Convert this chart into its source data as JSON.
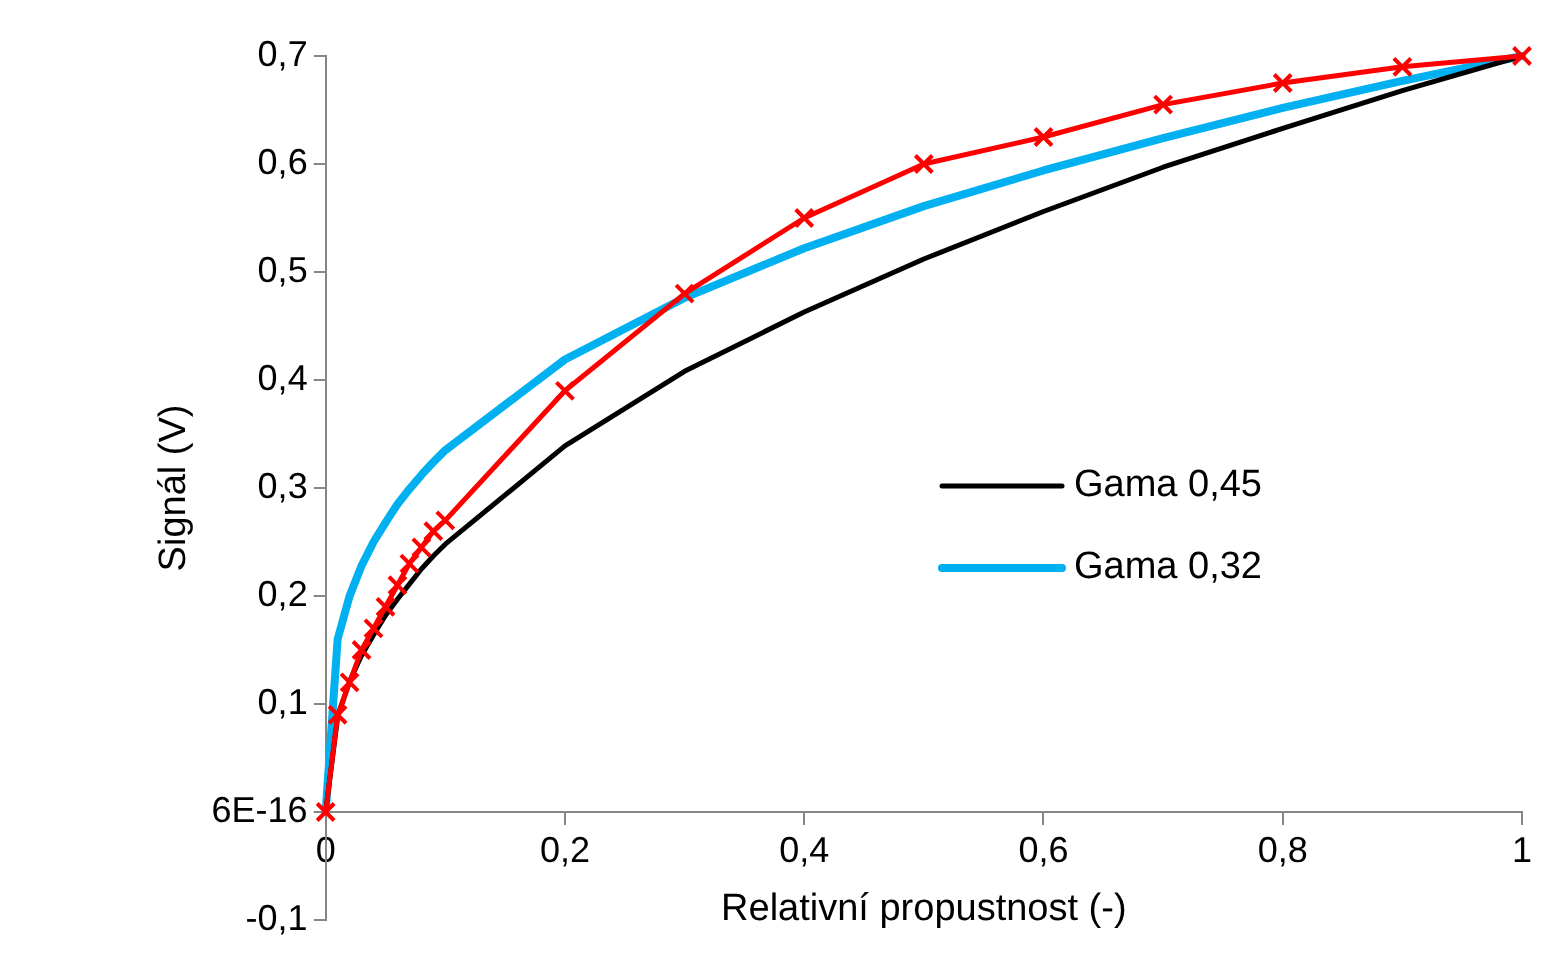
{
  "chart_data": {
    "type": "line",
    "xlabel": "Relativní propustnost (-)",
    "ylabel": "Signál (V)",
    "xlim": [
      0,
      1
    ],
    "xticks": [
      0,
      {
        "value": 0.2,
        "label": "0,2"
      },
      {
        "value": 0.4,
        "label": "0,4"
      },
      {
        "value": 0.6,
        "label": "0,6"
      },
      {
        "value": 0.8,
        "label": "0,8"
      },
      1
    ],
    "ylim": [
      -0.1,
      0.7
    ],
    "yticks": [
      {
        "value": -0.1,
        "label": "-0,1"
      },
      {
        "value": 0,
        "label": "6E-16"
      },
      {
        "value": 0.1,
        "label": "0,1"
      },
      {
        "value": 0.2,
        "label": "0,2"
      },
      {
        "value": 0.3,
        "label": "0,3"
      },
      {
        "value": 0.4,
        "label": "0,4"
      },
      {
        "value": 0.5,
        "label": "0,5"
      },
      {
        "value": 0.6,
        "label": "0,6"
      },
      {
        "value": 0.7,
        "label": "0,7"
      }
    ],
    "grid": false,
    "legend": "right",
    "line_style": "solid",
    "x": [
      0,
      0.01,
      0.02,
      0.03,
      0.04,
      0.05,
      0.06,
      0.07,
      0.08,
      0.09,
      0.1,
      0.2,
      0.3,
      0.4,
      0.5,
      0.6,
      0.7,
      0.8,
      0.9,
      1
    ],
    "series": [
      {
        "color": "#ff0000",
        "marker": "cross",
        "values": [
          0,
          0.09,
          0.12,
          0.15,
          0.17,
          0.19,
          0.21,
          0.23,
          0.245,
          0.26,
          0.27,
          0.39,
          0.48,
          0.55,
          0.6,
          0.625,
          0.655,
          0.675,
          0.69,
          0.7
        ]
      },
      {
        "name": "Gama 0,45",
        "color": "#000000",
        "marker": "none",
        "values": [
          0,
          0.088,
          0.121,
          0.145,
          0.164,
          0.182,
          0.197,
          0.211,
          0.225,
          0.237,
          0.248,
          0.339,
          0.408,
          0.463,
          0.512,
          0.556,
          0.597,
          0.633,
          0.668,
          0.7
        ]
      },
      {
        "name": "Gama 0,32",
        "color": "#00b0f0",
        "marker": "none",
        "values": [
          0,
          0.16,
          0.2,
          0.228,
          0.25,
          0.268,
          0.285,
          0.299,
          0.312,
          0.324,
          0.335,
          0.419,
          0.476,
          0.522,
          0.561,
          0.594,
          0.624,
          0.652,
          0.677,
          0.7
        ]
      }
    ]
  }
}
